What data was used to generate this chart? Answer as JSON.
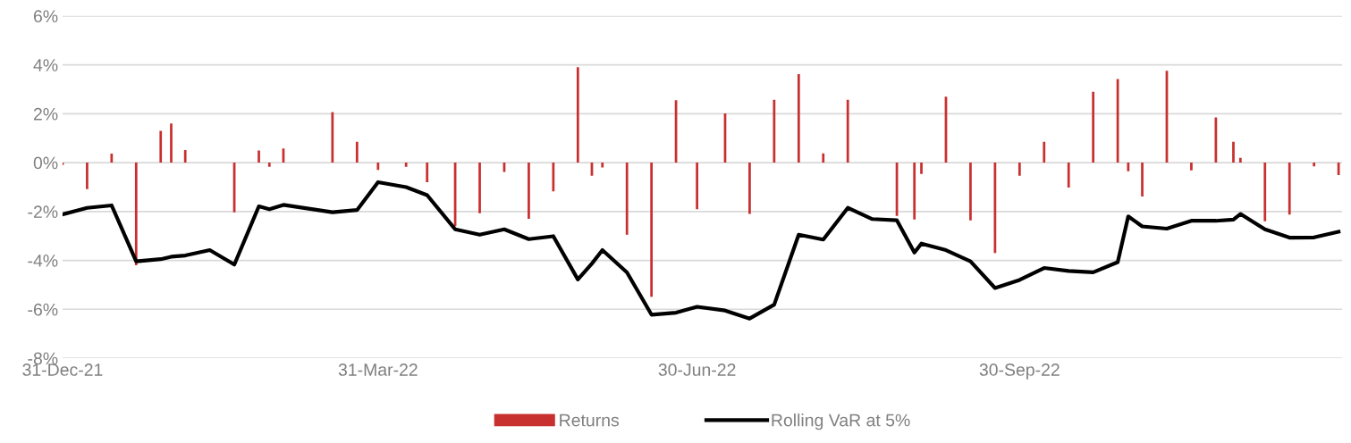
{
  "chart_data": {
    "type": "bar",
    "x": [
      "2021-12-31",
      "2022-01-07",
      "2022-01-14",
      "2022-01-21",
      "2022-01-28",
      "2022-01-31",
      "2022-02-04",
      "2022-02-11",
      "2022-02-18",
      "2022-02-25",
      "2022-02-28",
      "2022-03-04",
      "2022-03-18",
      "2022-03-25",
      "2022-03-31",
      "2022-04-08",
      "2022-04-14",
      "2022-04-22",
      "2022-04-29",
      "2022-05-06",
      "2022-05-13",
      "2022-05-20",
      "2022-05-27",
      "2022-05-31",
      "2022-06-03",
      "2022-06-10",
      "2022-06-17",
      "2022-06-24",
      "2022-06-30",
      "2022-07-08",
      "2022-07-15",
      "2022-07-22",
      "2022-07-29",
      "2022-08-05",
      "2022-08-12",
      "2022-08-19",
      "2022-08-26",
      "2022-08-31",
      "2022-09-02",
      "2022-09-09",
      "2022-09-16",
      "2022-09-23",
      "2022-09-30",
      "2022-10-07",
      "2022-10-14",
      "2022-10-21",
      "2022-10-28",
      "2022-10-31",
      "2022-11-04",
      "2022-11-11",
      "2022-11-18",
      "2022-11-25",
      "2022-11-30",
      "2022-12-02",
      "2022-12-09",
      "2022-12-16",
      "2022-12-23",
      "2022-12-30"
    ],
    "series": [
      {
        "name": "Returns",
        "color": "#c8302f",
        "values": [
          -0.1,
          -1.08,
          0.37,
          -4.2,
          1.3,
          1.6,
          0.51,
          null,
          -2.03,
          0.5,
          -0.17,
          0.58,
          2.07,
          0.85,
          -0.3,
          -0.17,
          -0.8,
          -2.6,
          -2.07,
          -0.38,
          -2.3,
          -1.18,
          3.9,
          -0.54,
          -0.2,
          -2.95,
          -5.49,
          2.55,
          -1.91,
          2.01,
          -2.1,
          2.57,
          3.62,
          0.38,
          2.57,
          null,
          -2.18,
          -2.33,
          -0.46,
          2.7,
          -2.36,
          -3.7,
          -0.54,
          0.85,
          -1.02,
          2.9,
          3.42,
          -0.35,
          -1.39,
          3.76,
          -0.32,
          1.85,
          0.85,
          0.19,
          -2.4,
          -2.13,
          -0.15,
          -0.51
        ]
      },
      {
        "name": "Rolling VaR at 5%",
        "type": "line",
        "color": "#000000",
        "values": [
          -2.12,
          -1.85,
          -1.75,
          -4.04,
          -3.95,
          -3.85,
          -3.8,
          -3.58,
          -4.17,
          -1.79,
          -1.91,
          -1.73,
          -2.03,
          -1.94,
          -0.8,
          -1.0,
          -1.33,
          -2.73,
          -2.95,
          -2.73,
          -3.13,
          -3.01,
          -4.78,
          -4.13,
          -3.58,
          -4.49,
          -6.22,
          -6.14,
          -5.9,
          -6.05,
          -6.38,
          -5.81,
          -2.95,
          -3.15,
          -1.85,
          -2.31,
          -2.36,
          -3.68,
          -3.31,
          -3.58,
          -4.04,
          -5.13,
          -4.8,
          -4.31,
          -4.43,
          -4.49,
          -4.07,
          -2.2,
          -2.61,
          -2.7,
          -2.38,
          -2.38,
          -2.33,
          -2.1,
          -2.73,
          -3.07,
          -3.06,
          -2.83
        ]
      }
    ],
    "xlim": [
      "2021-12-31",
      "2022-12-31"
    ],
    "xticks": [
      {
        "value": "2021-12-31",
        "label": "31-Dec-21"
      },
      {
        "value": "2022-03-31",
        "label": "31-Mar-22"
      },
      {
        "value": "2022-06-30",
        "label": "30-Jun-22"
      },
      {
        "value": "2022-09-30",
        "label": "30-Sep-22"
      }
    ],
    "ylim": [
      -8,
      6
    ],
    "yticks": [
      {
        "value": -8,
        "label": "-8%"
      },
      {
        "value": -6,
        "label": "-6%"
      },
      {
        "value": -4,
        "label": "-4%"
      },
      {
        "value": -2,
        "label": "-2%"
      },
      {
        "value": 0,
        "label": "0%"
      },
      {
        "value": 2,
        "label": "2%"
      },
      {
        "value": 4,
        "label": "4%"
      },
      {
        "value": 6,
        "label": "6%"
      }
    ],
    "grid": "y",
    "legend": "bottom"
  }
}
